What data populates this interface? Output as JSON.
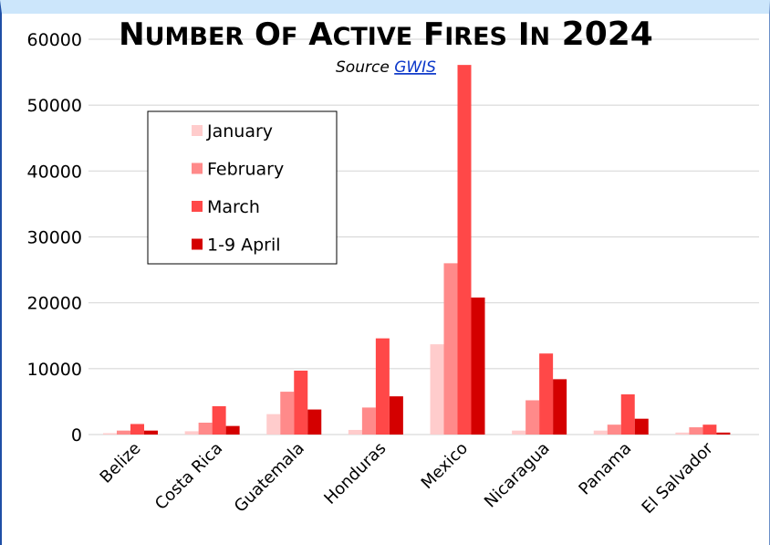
{
  "chart_data": {
    "type": "bar",
    "title": "Number of active fires in 2024",
    "subtitle_prefix": "Source ",
    "subtitle_link": "GWIS",
    "categories": [
      "Belize",
      "Costa Rica",
      "Guatemala",
      "Honduras",
      "Mexico",
      "Nicaragua",
      "Panama",
      "El Salvador"
    ],
    "series": [
      {
        "name": "January",
        "color": "#ffcccc",
        "values": [
          200,
          500,
          3100,
          700,
          13700,
          600,
          600,
          300
        ]
      },
      {
        "name": "February",
        "color": "#ff8a8a",
        "values": [
          600,
          1800,
          6500,
          4100,
          26000,
          5200,
          1500,
          1100
        ]
      },
      {
        "name": "March",
        "color": "#ff4848",
        "values": [
          1600,
          4300,
          9700,
          14600,
          56100,
          12300,
          6100,
          1500
        ]
      },
      {
        "name": "1-9 April",
        "color": "#d40000",
        "values": [
          600,
          1300,
          3800,
          5800,
          20800,
          8400,
          2400,
          300
        ]
      }
    ],
    "ylim": [
      0,
      60000
    ],
    "yticks": [
      "0",
      "10000",
      "20000",
      "30000",
      "40000",
      "50000",
      "60000"
    ],
    "grid": true,
    "legend": "top-left"
  }
}
